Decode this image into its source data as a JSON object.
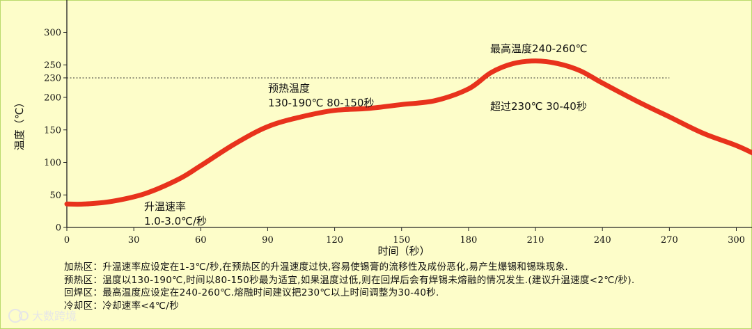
{
  "chart_data": {
    "type": "line",
    "xlabel": "时间（秒）",
    "ylabel": "温度（℃）",
    "xlim": [
      0,
      310
    ],
    "ylim": [
      0,
      340
    ],
    "x_ticks": [
      "0",
      "30",
      "60",
      "90",
      "120",
      "150",
      "180",
      "210",
      "240",
      "270",
      "300"
    ],
    "x_tick_values": [
      0,
      30,
      60,
      90,
      120,
      150,
      180,
      210,
      240,
      270,
      300
    ],
    "y_ticks": [
      "0",
      "50",
      "100",
      "150",
      "200",
      "230",
      "250",
      "300"
    ],
    "y_tick_values": [
      0,
      50,
      100,
      150,
      200,
      230,
      250,
      300
    ],
    "reference_line": {
      "y": 230,
      "style": "dotted"
    },
    "series": [
      {
        "color": "#e8321c",
        "x": [
          0,
          8,
          20,
          35,
          50,
          60,
          75,
          90,
          105,
          120,
          135,
          150,
          165,
          180,
          190,
          200,
          210,
          220,
          230,
          240,
          255,
          270,
          285,
          300,
          310
        ],
        "y": [
          36,
          36,
          40,
          52,
          74,
          95,
          128,
          155,
          170,
          180,
          183,
          189,
          195,
          213,
          238,
          252,
          256,
          252,
          241,
          222,
          195,
          170,
          145,
          126,
          110
        ]
      }
    ],
    "annotations": [
      {
        "lines": [
          "升温速率",
          "1.0-3.0℃/秒"
        ]
      },
      {
        "lines": [
          "预热温度",
          "130-190℃ 80-150秒"
        ]
      },
      {
        "lines": [
          "最高温度240-260℃"
        ]
      },
      {
        "lines": [
          "超过230℃ 30-40秒"
        ]
      }
    ]
  },
  "notes": [
    {
      "head": "加热区：",
      "body": "升温速率应设定在1-3℃/秒,在预热区的升温速度过快,容易使锡膏的流移性及成份恶化,易产生爆锡和锡珠现象."
    },
    {
      "head": "预热区：",
      "body": "温度以130-190℃,时间以80-150秒最为适宜,如果温度过低,则在回焊后会有焊锡未熔融的情况发生.(建议升温速度<2℃/秒)."
    },
    {
      "head": "回焊区：",
      "body": "最高温度应设定在240-260℃.熔融时间建议把230℃以上时间调整为30-40秒."
    },
    {
      "head": "冷却区：",
      "body": "冷却速率<4℃/秒"
    }
  ],
  "watermark": "大数跨境",
  "colors": {
    "background": "#fdfdc9",
    "curve": "#e8321c",
    "border": "#b9d96a"
  }
}
